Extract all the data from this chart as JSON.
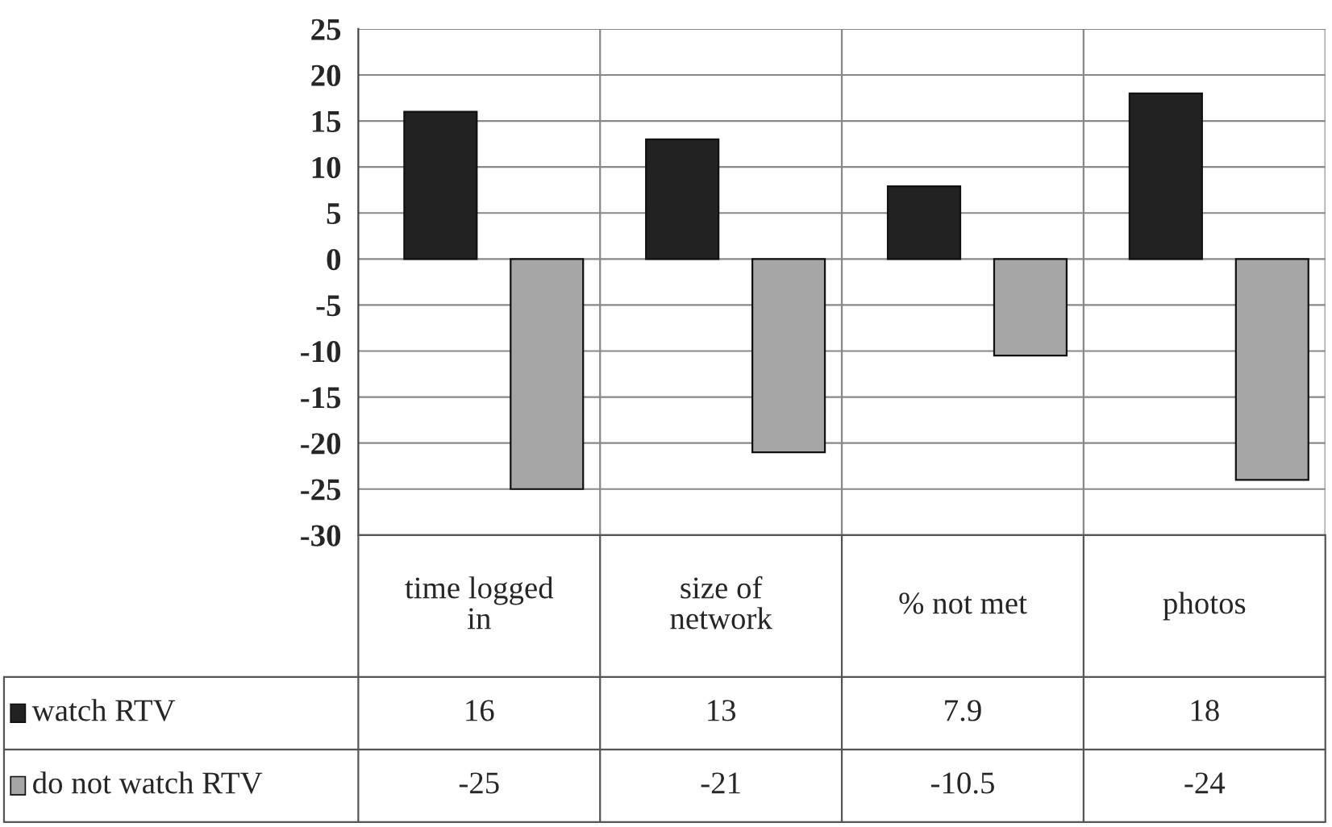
{
  "chart_data": {
    "type": "bar",
    "categories": [
      "time logged in",
      "size of network",
      "% not met",
      "photos"
    ],
    "series": [
      {
        "name": "watch RTV",
        "color": "#222222",
        "values": [
          16,
          13,
          7.9,
          18
        ]
      },
      {
        "name": "do not watch RTV",
        "color": "#a6a6a6",
        "values": [
          -25,
          -21,
          -10.5,
          -24
        ]
      }
    ],
    "ylim": [
      -30,
      25
    ],
    "yticks": [
      -30,
      -25,
      -20,
      -15,
      -10,
      -5,
      0,
      5,
      10,
      15,
      20,
      25
    ],
    "grid": "y",
    "data_labels": true,
    "legend": "bottom"
  }
}
